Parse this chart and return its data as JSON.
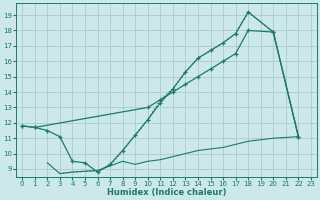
{
  "title": "",
  "xlabel": "Humidex (Indice chaleur)",
  "ylabel": "",
  "bg_color": "#cce8e8",
  "grid_color": "#aacccc",
  "line_color": "#1a7a6e",
  "xlim": [
    -0.5,
    23.5
  ],
  "ylim": [
    8.5,
    19.8
  ],
  "yticks": [
    9,
    10,
    11,
    12,
    13,
    14,
    15,
    16,
    17,
    18,
    19
  ],
  "xticks": [
    0,
    1,
    2,
    3,
    4,
    5,
    6,
    7,
    8,
    9,
    10,
    11,
    12,
    13,
    14,
    15,
    16,
    17,
    18,
    19,
    20,
    21,
    22,
    23
  ],
  "line1_x": [
    0,
    1,
    2,
    3,
    4,
    5,
    6,
    7,
    8,
    9,
    10,
    11,
    12,
    13,
    14,
    15,
    16,
    17,
    18,
    20,
    22
  ],
  "line1_y": [
    11.8,
    11.7,
    11.5,
    11.1,
    9.5,
    9.4,
    8.8,
    9.3,
    10.2,
    11.2,
    12.2,
    13.3,
    14.2,
    15.3,
    16.2,
    16.7,
    17.2,
    17.8,
    19.2,
    17.9,
    11.1
  ],
  "line2_x": [
    0,
    1,
    10,
    11,
    12,
    13,
    14,
    15,
    16,
    17,
    18,
    20,
    22
  ],
  "line2_y": [
    11.8,
    11.7,
    13.0,
    13.5,
    14.0,
    14.5,
    15.0,
    15.5,
    16.0,
    16.5,
    18.0,
    17.9,
    11.1
  ],
  "line3_x": [
    2,
    3,
    4,
    5,
    6,
    7,
    8,
    9,
    10,
    11,
    12,
    13,
    14,
    15,
    16,
    17,
    18,
    19,
    20,
    22
  ],
  "line3_y": [
    9.4,
    8.7,
    8.8,
    8.85,
    8.9,
    9.2,
    9.5,
    9.3,
    9.5,
    9.6,
    9.8,
    10.0,
    10.2,
    10.3,
    10.4,
    10.6,
    10.8,
    10.9,
    11.0,
    11.1
  ],
  "line4_x": [
    3,
    4,
    5,
    6,
    7,
    8,
    9,
    10,
    11,
    12,
    13,
    14,
    15,
    16,
    17,
    18,
    20,
    22
  ],
  "line4_y": [
    8.7,
    8.8,
    8.85,
    8.9,
    9.2,
    10.2,
    11.2,
    12.2,
    13.5,
    14.2,
    15.3,
    16.2,
    16.7,
    17.2,
    17.8,
    19.2,
    17.9,
    11.1
  ]
}
